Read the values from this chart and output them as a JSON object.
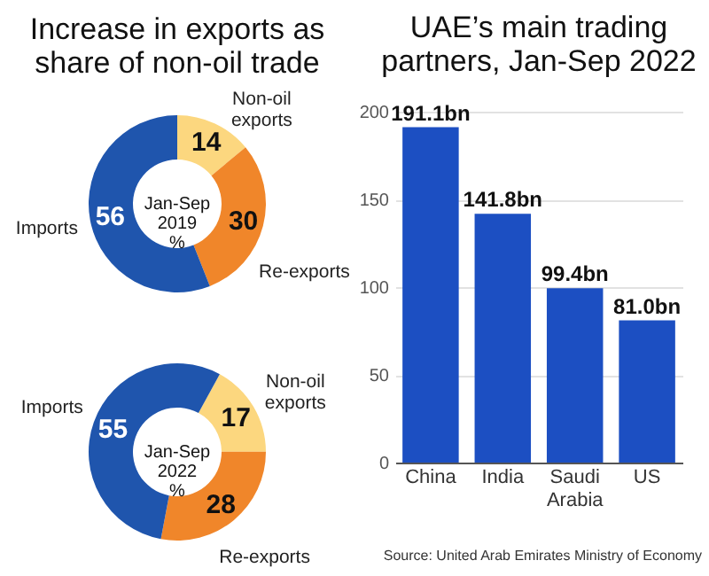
{
  "chart_data": [
    {
      "type": "donut",
      "title": "Increase in exports as share of non-oil trade",
      "annotations": [
        "Jan-Sep 2019 %"
      ],
      "categories": [
        "Non-oil exports",
        "Re-exports",
        "Imports"
      ],
      "values": [
        14,
        30,
        56
      ],
      "colors": [
        "#fcd77f",
        "#f0862a",
        "#1f55ad"
      ],
      "data_labels": true
    },
    {
      "type": "donut",
      "annotations": [
        "Jan-Sep 2022 %"
      ],
      "categories": [
        "Non-oil exports",
        "Re-exports",
        "Imports"
      ],
      "values": [
        17,
        28,
        55
      ],
      "colors": [
        "#fcd77f",
        "#f0862a",
        "#1f55ad"
      ],
      "data_labels": true
    },
    {
      "type": "bar",
      "title": "UAE’s main trading partners, Jan-Sep 2022",
      "categories": [
        "China",
        "India",
        "Saudi Arabia",
        "US"
      ],
      "values": [
        191.1,
        141.8,
        99.4,
        81.0
      ],
      "value_labels": [
        "191.1bn",
        "141.8bn",
        "99.4bn",
        "81.0bn"
      ],
      "color": "#1c4fc2",
      "ylim": [
        0,
        200
      ],
      "yticks": [
        0,
        50,
        100,
        150,
        200
      ],
      "grid": "y",
      "annotations": [
        "Source: United Arab Emirates Ministry of Economy"
      ]
    }
  ]
}
